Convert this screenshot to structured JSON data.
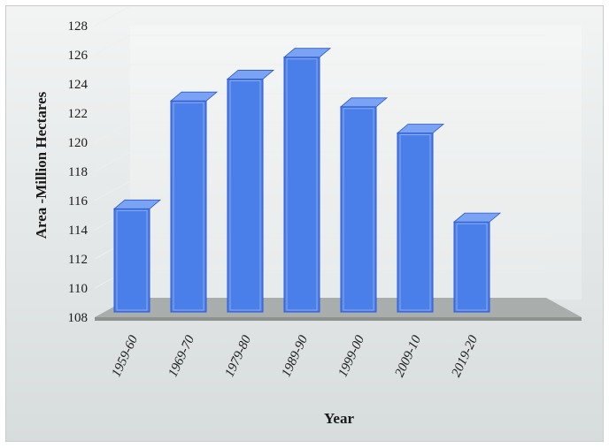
{
  "chart_data": {
    "type": "bar",
    "title": "",
    "xlabel": "Year",
    "ylabel": "Area -Million Hectares",
    "ylim": [
      108,
      128
    ],
    "yticks": [
      108,
      110,
      112,
      114,
      116,
      118,
      120,
      122,
      124,
      126,
      128
    ],
    "ytick_labels": [
      "108",
      "110",
      "112",
      "114",
      "116",
      "118",
      "120",
      "122",
      "124",
      "126",
      "128"
    ],
    "categories": [
      "1959-60",
      "1969-70",
      "1979-80",
      "1989-90",
      "1999-00",
      "2009-10",
      "2019-20"
    ],
    "values": [
      115.8,
      123.2,
      124.7,
      126.2,
      122.8,
      121.0,
      114.9
    ],
    "grid": true,
    "style": "3d",
    "bar_color": "#4a7ee8"
  }
}
